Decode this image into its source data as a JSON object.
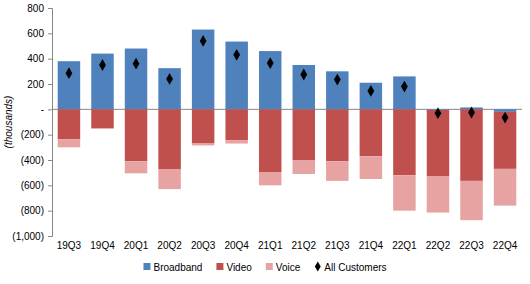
{
  "chart_data": {
    "type": "bar",
    "stacked": true,
    "legend": "bottom",
    "grid": false,
    "y_label": "(thousands)",
    "categories": [
      "19Q3",
      "19Q4",
      "20Q1",
      "20Q2",
      "20Q3",
      "20Q4",
      "21Q1",
      "21Q2",
      "21Q3",
      "21Q4",
      "22Q1",
      "22Q2",
      "22Q3",
      "22Q4"
    ],
    "ylim": [
      -1000,
      800
    ],
    "yticks": [
      800,
      600,
      400,
      200,
      {
        "value": 0,
        "label": "-"
      },
      {
        "value": -200,
        "label": "(200)"
      },
      {
        "value": -400,
        "label": "(400)"
      },
      {
        "value": -600,
        "label": "(600)"
      },
      {
        "value": -800,
        "label": "(800)"
      },
      {
        "value": -1000,
        "label": "(1,000)"
      }
    ],
    "series": [
      {
        "name": "Broadband",
        "color": "#4f81bd",
        "type": "bar",
        "values": [
          380,
          440,
          480,
          325,
          630,
          535,
          460,
          350,
          300,
          210,
          260,
          -5,
          15,
          -20
        ]
      },
      {
        "name": "Video",
        "color": "#c0504d",
        "type": "bar",
        "values": [
          -235,
          -150,
          -410,
          -475,
          -270,
          -245,
          -495,
          -400,
          -410,
          -370,
          -520,
          -525,
          -565,
          -450
        ]
      },
      {
        "name": "Voice",
        "color": "#e6a3a2",
        "type": "bar",
        "values": [
          -65,
          -5,
          -95,
          -155,
          -15,
          -25,
          -105,
          -110,
          -155,
          -180,
          -280,
          -285,
          -310,
          -290
        ]
      },
      {
        "name": "All Customers",
        "color": "#000000",
        "type": "scatter",
        "marker": "diamond",
        "values": [
          285,
          350,
          360,
          240,
          540,
          430,
          365,
          275,
          235,
          145,
          180,
          -30,
          -25,
          -65
        ]
      }
    ]
  }
}
